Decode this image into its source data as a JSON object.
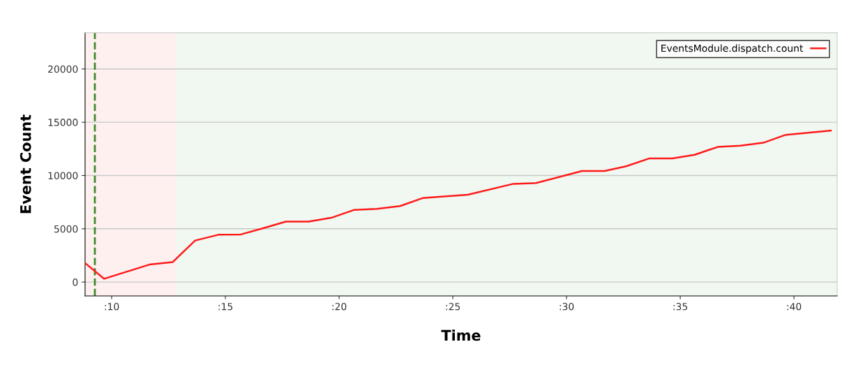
{
  "chart_data": {
    "type": "line",
    "xlabel": "Time",
    "ylabel": "Event Count",
    "x": [
      8.83,
      9.67,
      11.66,
      12.68,
      13.67,
      14.69,
      15.68,
      16.66,
      17.66,
      18.66,
      19.65,
      20.67,
      21.66,
      22.68,
      23.67,
      25.66,
      27.66,
      28.66,
      30.68,
      31.67,
      32.62,
      33.65,
      34.65,
      35.64,
      36.64,
      37.64,
      38.65,
      39.64,
      41.62
    ],
    "series": [
      {
        "name": "EventsModule.dispatch.count",
        "color": "#ff1a1a",
        "values": [
          1780,
          310,
          1640,
          1870,
          3900,
          4440,
          4470,
          5050,
          5680,
          5680,
          6030,
          6780,
          6870,
          7130,
          7880,
          8200,
          9220,
          9290,
          10430,
          10430,
          10870,
          11610,
          11610,
          11950,
          12680,
          12800,
          13070,
          13820,
          14210
        ]
      }
    ],
    "xlim": [
      8.83,
      41.9
    ],
    "xticks": [
      {
        "value": 10,
        "label": ":10"
      },
      {
        "value": 15,
        "label": ":15"
      },
      {
        "value": 20,
        "label": ":20"
      },
      {
        "value": 25,
        "label": ":25"
      },
      {
        "value": 30,
        "label": ":30"
      },
      {
        "value": 35,
        "label": ":35"
      },
      {
        "value": 40,
        "label": ":40"
      }
    ],
    "ylim": [
      -1300,
      23400
    ],
    "yticks": [
      0,
      5000,
      10000,
      15000,
      20000
    ],
    "grid": "y",
    "legend": "top right",
    "marker": "none",
    "line_style": "solid",
    "ref_lines": [
      {
        "axis": "x",
        "value": 9.26,
        "color": "#3a8a2a",
        "line_style": "dashed"
      }
    ],
    "bands": [
      {
        "axis": "x",
        "from": 8.83,
        "to": 12.84,
        "color": "#fff0f0"
      },
      {
        "axis": "x",
        "from": 12.84,
        "to": 41.9,
        "color": "#f1f8f1"
      }
    ]
  }
}
